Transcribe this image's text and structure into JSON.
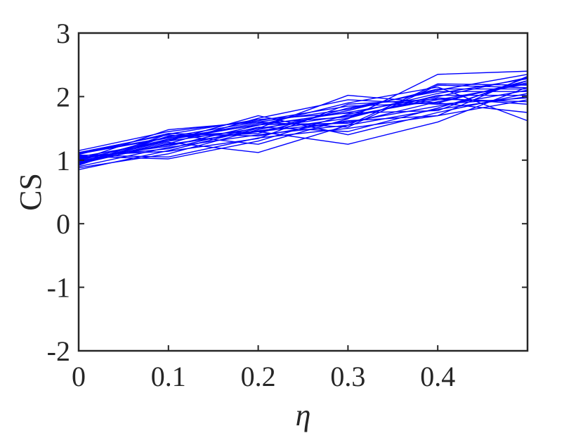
{
  "chart_data": {
    "type": "line",
    "title": "",
    "xlabel": "η",
    "ylabel": "CS",
    "xlim": [
      0,
      0.5
    ],
    "ylim": [
      -2,
      3
    ],
    "x_ticks": [
      "0",
      "0.1",
      "0.2",
      "0.3",
      "0.4"
    ],
    "y_ticks": [
      "-2",
      "-1",
      "0",
      "1",
      "2",
      "3"
    ],
    "x_tick_values": [
      0,
      0.1,
      0.2,
      0.3,
      0.4
    ],
    "y_tick_values": [
      -2,
      -1,
      0,
      1,
      2,
      3
    ],
    "grid": false,
    "box": true,
    "line_color": "#0000ff",
    "axis_color": "#262626",
    "x": [
      0,
      0.1,
      0.2,
      0.3,
      0.4,
      0.5
    ],
    "series": [
      {
        "values": [
          1.05,
          1.3,
          1.5,
          1.7,
          1.95,
          2.2
        ]
      },
      {
        "values": [
          0.95,
          1.25,
          1.45,
          1.6,
          1.85,
          2.1
        ]
      },
      {
        "values": [
          1.1,
          1.35,
          1.55,
          1.75,
          2.0,
          2.3
        ]
      },
      {
        "values": [
          0.9,
          1.2,
          1.4,
          1.55,
          1.8,
          2.0
        ]
      },
      {
        "values": [
          1.0,
          1.48,
          1.6,
          1.8,
          2.1,
          2.35
        ]
      },
      {
        "values": [
          1.08,
          1.05,
          1.35,
          1.5,
          1.7,
          1.95
        ]
      },
      {
        "values": [
          0.85,
          1.15,
          1.5,
          2.02,
          1.9,
          2.25
        ]
      },
      {
        "values": [
          1.12,
          1.4,
          1.25,
          1.65,
          2.35,
          2.4
        ]
      },
      {
        "values": [
          0.98,
          1.3,
          1.7,
          1.4,
          1.75,
          2.05
        ]
      },
      {
        "values": [
          1.03,
          1.22,
          1.55,
          1.9,
          2.15,
          1.62
        ]
      },
      {
        "values": [
          0.92,
          1.38,
          1.45,
          1.25,
          1.6,
          2.15
        ]
      },
      {
        "values": [
          1.06,
          1.02,
          1.3,
          1.72,
          2.05,
          2.28
        ]
      },
      {
        "values": [
          1.15,
          1.45,
          1.62,
          1.85,
          1.9,
          1.75
        ]
      },
      {
        "values": [
          0.96,
          1.28,
          1.12,
          1.55,
          2.2,
          2.18
        ]
      },
      {
        "values": [
          1.01,
          1.33,
          1.58,
          1.68,
          1.98,
          1.88
        ]
      },
      {
        "values": [
          0.88,
          1.1,
          1.48,
          1.78,
          2.12,
          2.12
        ]
      },
      {
        "values": [
          1.09,
          1.42,
          1.38,
          1.62,
          1.7,
          2.32
        ]
      },
      {
        "values": [
          0.94,
          1.26,
          1.66,
          1.95,
          1.88,
          1.98
        ]
      },
      {
        "values": [
          1.04,
          1.18,
          1.52,
          1.45,
          1.82,
          2.25
        ]
      },
      {
        "values": [
          1.11,
          1.36,
          1.42,
          1.82,
          2.08,
          2.08
        ]
      },
      {
        "values": [
          0.97,
          1.32,
          1.56,
          1.58,
          1.92,
          2.22
        ]
      },
      {
        "values": [
          1.02,
          1.24,
          1.46,
          1.66,
          2.02,
          2.02
        ]
      },
      {
        "values": [
          0.93,
          1.41,
          1.64,
          1.74,
          1.78,
          2.3
        ]
      },
      {
        "values": [
          1.07,
          1.14,
          1.34,
          1.88,
          1.96,
          1.92
        ]
      },
      {
        "values": [
          0.99,
          1.37,
          1.6,
          1.52,
          2.18,
          2.14
        ]
      }
    ]
  }
}
